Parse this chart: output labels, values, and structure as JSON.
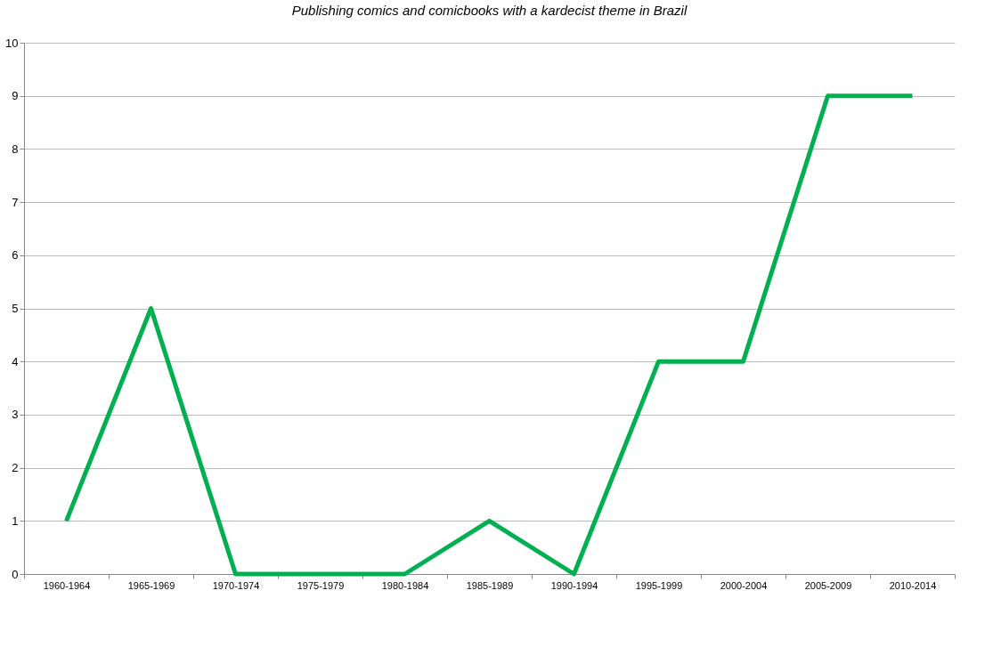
{
  "chart_data": {
    "type": "line",
    "title": "Publishing comics and comicbooks with a kardecist theme in Brazil",
    "categories": [
      "1960-1964",
      "1965-1969",
      "1970-1974",
      "1975-1979",
      "1980-1984",
      "1985-1989",
      "1990-1994",
      "1995-1999",
      "2000-2004",
      "2005-2009",
      "2010-2014"
    ],
    "series": [
      {
        "color": "#00b050",
        "values": [
          1,
          5,
          0,
          0,
          0,
          1,
          0,
          4,
          4,
          9,
          9
        ]
      }
    ],
    "ylim": [
      0,
      10
    ],
    "yticks": [
      0,
      1,
      2,
      3,
      4,
      5,
      6,
      7,
      8,
      9,
      10
    ],
    "grid": "y",
    "legend": false,
    "marker": "none",
    "line_style": "solid"
  }
}
